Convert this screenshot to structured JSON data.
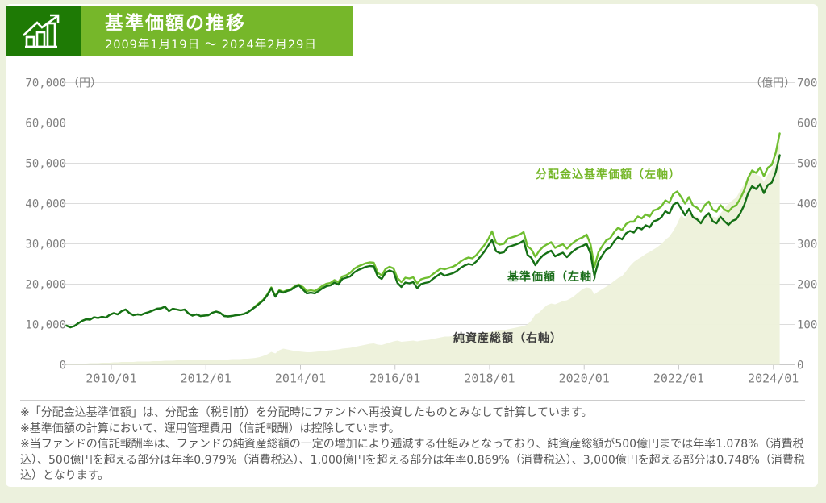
{
  "header": {
    "title": "基準価額の推移",
    "period": "2009年1月19日 ～ 2024年2月29日"
  },
  "colors": {
    "header_dark_green": "#1e7a05",
    "header_light_green": "#76b72a",
    "line_incl_nav": "#6fbe30",
    "line_nav": "#157015",
    "area_assets": "#edf1da",
    "grid": "#dcdcdc",
    "tick_text": "#7f7f7f",
    "note_text": "#595959",
    "page_background": "#ecf1dd"
  },
  "chart_data": {
    "type": "line",
    "title": "基準価額の推移",
    "left_axis": {
      "min": 0,
      "max": 70000,
      "step": 10000,
      "unit": "（円）"
    },
    "right_axis": {
      "min": 0,
      "max": 700,
      "step": 100,
      "unit": "（億円）"
    },
    "x_tick_start": 2010,
    "x_tick_step": 2,
    "x_ticks": [
      "2010/01",
      "2012/01",
      "2014/01",
      "2016/01",
      "2018/01",
      "2020/01",
      "2022/01",
      "2024/01"
    ],
    "x_range": [
      "2009/01",
      "2024/02"
    ],
    "sampling": "monthly from 2009/01 to 2024/02",
    "series": [
      {
        "name": "分配金込基準価額（左軸）",
        "type": "line",
        "axis": "left",
        "color": "#6fbe30",
        "values": [
          9700,
          9300,
          9600,
          10300,
          10900,
          11300,
          11200,
          11800,
          11600,
          11900,
          11700,
          12400,
          12800,
          12500,
          13300,
          13700,
          12800,
          12300,
          12500,
          12400,
          12800,
          13100,
          13500,
          13900,
          14000,
          14400,
          13300,
          13900,
          13700,
          13500,
          13700,
          12700,
          12200,
          12500,
          12100,
          12200,
          12300,
          12900,
          13200,
          12900,
          12100,
          12000,
          12100,
          12300,
          12400,
          12600,
          13000,
          13700,
          14600,
          15400,
          16200,
          17500,
          19200,
          17100,
          18500,
          18100,
          18500,
          18800,
          19500,
          19900,
          19300,
          18300,
          18500,
          18300,
          18900,
          19600,
          20100,
          20300,
          21000,
          20500,
          21900,
          22200,
          22800,
          23800,
          24400,
          24800,
          25200,
          25400,
          25300,
          22800,
          22200,
          23800,
          24300,
          23900,
          21500,
          20500,
          21600,
          21400,
          21700,
          20200,
          21200,
          21500,
          21700,
          22500,
          23200,
          23900,
          23700,
          24000,
          24300,
          24800,
          25600,
          26200,
          26600,
          26400,
          27200,
          28400,
          29600,
          31100,
          33100,
          30300,
          29800,
          30000,
          31300,
          31600,
          31900,
          32300,
          32900,
          29400,
          28600,
          26800,
          28300,
          29300,
          29900,
          30400,
          29000,
          29500,
          29900,
          28800,
          29800,
          30600,
          31200,
          31600,
          32300,
          29900,
          24300,
          27900,
          29500,
          30900,
          31400,
          32900,
          34000,
          33400,
          34900,
          35500,
          35500,
          36800,
          36300,
          37300,
          36800,
          38300,
          38600,
          39300,
          40800,
          40200,
          42400,
          43000,
          41600,
          40000,
          41600,
          39500,
          39000,
          38000,
          39600,
          40500,
          38500,
          38000,
          39600,
          38500,
          38000,
          39100,
          39600,
          41200,
          43300,
          46400,
          48200,
          47600,
          48900,
          46800,
          48900,
          49600,
          52600,
          57400
        ]
      },
      {
        "name": "基準価額（左軸）",
        "type": "line",
        "axis": "left",
        "color": "#157015",
        "values": [
          9700,
          9300,
          9600,
          10300,
          10900,
          11300,
          11200,
          11800,
          11600,
          11900,
          11700,
          12400,
          12800,
          12500,
          13300,
          13700,
          12800,
          12300,
          12500,
          12400,
          12800,
          13100,
          13500,
          13900,
          14000,
          14400,
          13300,
          13900,
          13700,
          13500,
          13700,
          12700,
          12200,
          12500,
          12100,
          12200,
          12300,
          12900,
          13200,
          12900,
          12100,
          12000,
          12100,
          12300,
          12400,
          12600,
          13000,
          13700,
          14400,
          15200,
          16000,
          17300,
          19000,
          16900,
          18300,
          17900,
          18300,
          18600,
          19300,
          19700,
          18700,
          17700,
          17900,
          17700,
          18300,
          19000,
          19500,
          19700,
          20400,
          19900,
          21300,
          21600,
          21900,
          22900,
          23500,
          23900,
          24300,
          24500,
          24400,
          21900,
          21300,
          22900,
          23400,
          23000,
          20300,
          19300,
          20400,
          20200,
          20500,
          19000,
          20000,
          20300,
          20500,
          21300,
          22000,
          22700,
          22100,
          22400,
          22700,
          23200,
          24000,
          24600,
          25000,
          24800,
          25600,
          26800,
          28000,
          29500,
          31000,
          28200,
          27700,
          27900,
          29200,
          29500,
          29800,
          30200,
          30800,
          27300,
          26500,
          24700,
          26200,
          27200,
          27800,
          28300,
          26900,
          27400,
          27800,
          26700,
          27700,
          28500,
          29100,
          29500,
          30000,
          27600,
          22000,
          25600,
          27200,
          28600,
          29100,
          30600,
          31700,
          31100,
          32600,
          33200,
          32800,
          34100,
          33600,
          34600,
          34100,
          35600,
          35900,
          36600,
          38100,
          37500,
          39700,
          40300,
          38700,
          37100,
          38700,
          36600,
          36100,
          35100,
          36700,
          37600,
          35600,
          35100,
          36700,
          35600,
          34700,
          35700,
          36100,
          37600,
          39600,
          42600,
          44300,
          43600,
          44800,
          42600,
          44600,
          45200,
          47800,
          52000
        ]
      },
      {
        "name": "純資産総額（右軸）",
        "type": "area",
        "axis": "right",
        "color": "#edf1da",
        "values": [
          2,
          2,
          2,
          3,
          3,
          3,
          4,
          4,
          4,
          5,
          5,
          5,
          6,
          6,
          7,
          7,
          7,
          7,
          8,
          8,
          8,
          8,
          9,
          9,
          9,
          10,
          10,
          10,
          11,
          11,
          11,
          11,
          11,
          11,
          12,
          12,
          12,
          12,
          13,
          13,
          13,
          13,
          14,
          14,
          14,
          15,
          15,
          16,
          17,
          19,
          22,
          26,
          32,
          28,
          36,
          40,
          38,
          36,
          34,
          33,
          32,
          31,
          31,
          32,
          33,
          34,
          35,
          36,
          37,
          38,
          40,
          41,
          42,
          44,
          46,
          48,
          50,
          52,
          53,
          50,
          49,
          52,
          55,
          58,
          60,
          57,
          58,
          59,
          60,
          58,
          60,
          61,
          62,
          64,
          66,
          68,
          70,
          70,
          71,
          72,
          73,
          74,
          75,
          76,
          77,
          78,
          80,
          81,
          82,
          84,
          85,
          86,
          88,
          90,
          92,
          94,
          96,
          100,
          110,
          125,
          130,
          140,
          148,
          152,
          150,
          154,
          158,
          160,
          165,
          172,
          180,
          188,
          192,
          190,
          175,
          182,
          188,
          194,
          200,
          208,
          215,
          220,
          232,
          245,
          255,
          262,
          268,
          275,
          280,
          286,
          292,
          300,
          310,
          318,
          332,
          350,
          372,
          362,
          378,
          370,
          368,
          360,
          370,
          380,
          368,
          365,
          376,
          388,
          400,
          408,
          415,
          432,
          448,
          465,
          478,
          472,
          468,
          455,
          472,
          485,
          510,
          578
        ]
      }
    ]
  },
  "notes": [
    "※「分配金込基準価額」は、分配金（税引前）を分配時にファンドへ再投資したものとみなして計算しています。",
    "※基準価額の計算において、運用管理費用（信託報酬）は控除しています。",
    "※当ファンドの信託報酬率は、ファンドの純資産総額の一定の増加により逓減する仕組みとなっており、純資産総額が500億円までは年率1.078%（消費税込）、500億円を超える部分は年率0.979%（消費税込）、1,000億円を超える部分は年率0.869%（消費税込）、3,000億円を超える部分は0.748%（消費税込）となります。"
  ]
}
